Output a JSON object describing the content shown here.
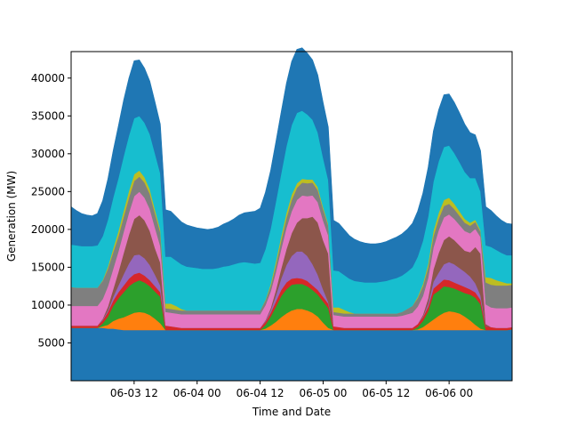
{
  "chart_data": {
    "type": "area",
    "stacked": true,
    "title": "",
    "xlabel": "Time and Date",
    "ylabel": "Generation (MW)",
    "x_start_hour": -36,
    "x_end_hour": 48,
    "xlim_hours": [
      -36,
      48
    ],
    "ylim": [
      0,
      43500
    ],
    "y_ticks": [
      5000,
      10000,
      15000,
      20000,
      25000,
      30000,
      35000,
      40000
    ],
    "x_ticks": [
      {
        "label": "06-03 12",
        "hour": -24
      },
      {
        "label": "06-04 00",
        "hour": -12
      },
      {
        "label": "06-04 12",
        "hour": 0
      },
      {
        "label": "06-05 00",
        "hour": 12
      },
      {
        "label": "06-05 12",
        "hour": 24
      },
      {
        "label": "06-06 00",
        "hour": 36
      }
    ],
    "grid": false,
    "legend": "none",
    "series": [
      {
        "name": "",
        "color": "#1f77b4",
        "values": [
          7000,
          7000,
          7000,
          7000,
          7000,
          7000,
          7000,
          6900,
          6900,
          6800,
          6700,
          6700,
          6700,
          6700,
          6700,
          6700,
          6700,
          6700,
          6700,
          6700,
          6700,
          6700,
          6700,
          6700,
          6700,
          6700,
          6700,
          6700,
          6700,
          6700,
          6700,
          6700,
          6700,
          6700,
          6700,
          6700,
          6700,
          6700,
          6700,
          6700,
          6700,
          6700,
          6700,
          6700,
          6700,
          6700,
          6700,
          6700,
          6700,
          6700,
          6700,
          6700,
          6700,
          6700,
          6700,
          6700,
          6700,
          6700,
          6700,
          6700,
          6700,
          6700,
          6700,
          6700,
          6700,
          6700,
          6700,
          6700,
          6700,
          6700,
          6700,
          6700,
          6700,
          6700,
          6700,
          6700,
          6700,
          6700,
          6700,
          6700,
          6700,
          6700,
          6700,
          6700,
          6800
        ]
      },
      {
        "name": "",
        "color": "#ff7f0e",
        "values": [
          0,
          0,
          0,
          0,
          0,
          0,
          200,
          500,
          1000,
          1400,
          1700,
          2000,
          2300,
          2400,
          2300,
          2000,
          1500,
          900,
          0,
          0,
          0,
          0,
          0,
          0,
          0,
          0,
          0,
          0,
          0,
          0,
          0,
          0,
          0,
          0,
          0,
          0,
          0,
          200,
          600,
          1100,
          1700,
          2200,
          2600,
          2800,
          2800,
          2600,
          2300,
          1800,
          1000,
          300,
          0,
          0,
          0,
          0,
          0,
          0,
          0,
          0,
          0,
          0,
          0,
          0,
          0,
          0,
          0,
          0,
          100,
          400,
          900,
          1400,
          1900,
          2300,
          2500,
          2400,
          2200,
          1800,
          1300,
          700,
          200,
          0,
          0,
          0,
          0,
          0,
          0
        ]
      },
      {
        "name": "",
        "color": "#2ca02c",
        "values": [
          0,
          0,
          0,
          0,
          0,
          0,
          400,
          1100,
          2000,
          2700,
          3300,
          3800,
          4000,
          4200,
          4000,
          3800,
          3600,
          3500,
          0,
          0,
          0,
          0,
          0,
          0,
          0,
          0,
          0,
          0,
          0,
          0,
          0,
          0,
          0,
          0,
          0,
          0,
          0,
          500,
          1200,
          2000,
          2800,
          3200,
          3400,
          3300,
          3300,
          3200,
          3000,
          2900,
          2800,
          2600,
          0,
          0,
          0,
          0,
          0,
          0,
          0,
          0,
          0,
          0,
          0,
          0,
          0,
          0,
          0,
          0,
          300,
          800,
          1600,
          3300,
          3300,
          3500,
          3200,
          3100,
          3000,
          3100,
          3400,
          3600,
          3200,
          0,
          0,
          0,
          0,
          0,
          0
        ]
      },
      {
        "name": "",
        "color": "#d62728",
        "values": [
          300,
          300,
          300,
          300,
          300,
          300,
          400,
          600,
          700,
          800,
          900,
          1000,
          1100,
          1000,
          900,
          800,
          700,
          600,
          600,
          500,
          400,
          300,
          300,
          300,
          300,
          300,
          300,
          300,
          300,
          300,
          300,
          300,
          300,
          300,
          300,
          300,
          300,
          400,
          500,
          700,
          800,
          900,
          800,
          800,
          700,
          700,
          600,
          600,
          600,
          600,
          500,
          400,
          300,
          300,
          300,
          300,
          300,
          300,
          300,
          300,
          300,
          300,
          300,
          300,
          300,
          300,
          400,
          500,
          600,
          800,
          900,
          900,
          900,
          800,
          800,
          800,
          700,
          700,
          600,
          500,
          400,
          300,
          300,
          300,
          300
        ]
      },
      {
        "name": "",
        "color": "#9467bd",
        "values": [
          0,
          0,
          0,
          0,
          0,
          0,
          100,
          200,
          500,
          900,
          1500,
          2000,
          2500,
          2400,
          2300,
          2000,
          1500,
          900,
          0,
          0,
          0,
          0,
          0,
          0,
          0,
          0,
          0,
          0,
          0,
          0,
          0,
          0,
          0,
          0,
          0,
          0,
          0,
          100,
          300,
          800,
          1500,
          2300,
          3000,
          3500,
          3600,
          3300,
          2800,
          2000,
          1000,
          200,
          0,
          0,
          0,
          0,
          0,
          0,
          0,
          0,
          0,
          0,
          0,
          0,
          0,
          0,
          0,
          0,
          0,
          100,
          400,
          900,
          1500,
          2000,
          2400,
          2400,
          2200,
          2000,
          1700,
          1200,
          600,
          0,
          0,
          0,
          0,
          0,
          0
        ]
      },
      {
        "name": "",
        "color": "#8c564b",
        "values": [
          0,
          0,
          0,
          0,
          0,
          0,
          100,
          500,
          1000,
          1800,
          2800,
          3800,
          4800,
          5200,
          5000,
          4500,
          3500,
          3000,
          0,
          0,
          0,
          0,
          0,
          0,
          0,
          0,
          0,
          0,
          0,
          0,
          0,
          0,
          0,
          0,
          0,
          0,
          0,
          100,
          300,
          700,
          1300,
          2100,
          3000,
          3800,
          4400,
          5000,
          6300,
          6900,
          6500,
          6400,
          0,
          0,
          0,
          0,
          0,
          0,
          0,
          0,
          0,
          0,
          0,
          0,
          0,
          0,
          0,
          0,
          0,
          200,
          700,
          1600,
          2600,
          3200,
          3400,
          3200,
          3000,
          2800,
          3200,
          4800,
          5500,
          300,
          0,
          0,
          0,
          0,
          0
        ]
      },
      {
        "name": "",
        "color": "#e377c2",
        "values": [
          2600,
          2600,
          2600,
          2600,
          2600,
          2600,
          2600,
          2700,
          2700,
          2700,
          2800,
          2900,
          3000,
          3100,
          3000,
          2900,
          2700,
          2200,
          1800,
          1800,
          1800,
          1800,
          1800,
          1800,
          1800,
          1800,
          1800,
          1800,
          1800,
          1800,
          1800,
          1800,
          1800,
          1800,
          1800,
          1800,
          1800,
          2000,
          2200,
          2400,
          2600,
          2800,
          2900,
          3000,
          3000,
          2900,
          2800,
          2700,
          2600,
          2400,
          1500,
          1500,
          1500,
          1500,
          1500,
          1500,
          1500,
          1500,
          1500,
          1500,
          1500,
          1500,
          1500,
          1600,
          1800,
          2000,
          2300,
          2500,
          2700,
          2900,
          3000,
          3000,
          2900,
          2800,
          2700,
          2600,
          2500,
          2400,
          2200,
          2600,
          2600,
          2600,
          2600,
          2600,
          2600
        ]
      },
      {
        "name": "",
        "color": "#7f7f7f",
        "values": [
          2500,
          2400,
          2400,
          2400,
          2400,
          2400,
          2400,
          2300,
          2200,
          2000,
          2000,
          2000,
          2000,
          2000,
          2000,
          2000,
          1900,
          1800,
          500,
          500,
          500,
          500,
          500,
          500,
          500,
          500,
          500,
          500,
          500,
          500,
          500,
          500,
          500,
          500,
          500,
          500,
          500,
          600,
          700,
          900,
          1100,
          1300,
          1500,
          1600,
          1700,
          1700,
          1700,
          1600,
          1500,
          1300,
          400,
          400,
          400,
          400,
          400,
          400,
          400,
          400,
          400,
          400,
          400,
          400,
          400,
          500,
          700,
          900,
          1100,
          1300,
          1400,
          1500,
          1500,
          1500,
          1400,
          1300,
          1200,
          1100,
          1000,
          900,
          700,
          2900,
          3000,
          3000,
          3000,
          3000,
          3000
        ]
      },
      {
        "name": "",
        "color": "#bcbd22",
        "values": [
          0,
          0,
          0,
          0,
          0,
          0,
          100,
          300,
          500,
          700,
          800,
          900,
          900,
          800,
          700,
          600,
          500,
          400,
          600,
          700,
          500,
          200,
          0,
          0,
          0,
          0,
          0,
          0,
          0,
          0,
          0,
          0,
          0,
          0,
          0,
          0,
          0,
          100,
          300,
          500,
          600,
          700,
          700,
          600,
          500,
          500,
          400,
          400,
          300,
          200,
          600,
          700,
          500,
          200,
          0,
          0,
          0,
          0,
          0,
          0,
          0,
          0,
          0,
          0,
          0,
          0,
          200,
          300,
          500,
          700,
          800,
          800,
          800,
          700,
          600,
          500,
          400,
          300,
          200,
          700,
          900,
          700,
          500,
          300,
          200
        ]
      },
      {
        "name": "",
        "color": "#17becf",
        "values": [
          5600,
          5600,
          5500,
          5500,
          5500,
          5600,
          5800,
          6200,
          6700,
          7000,
          7200,
          7300,
          7400,
          7200,
          7200,
          7300,
          7400,
          7400,
          6200,
          6200,
          6000,
          5900,
          5800,
          5700,
          5600,
          5500,
          5500,
          5500,
          5600,
          5800,
          5900,
          6100,
          6300,
          6400,
          6300,
          6200,
          6300,
          6700,
          7300,
          7900,
          8300,
          8800,
          9200,
          9300,
          9000,
          8600,
          7900,
          7200,
          6500,
          5800,
          4900,
          4800,
          4600,
          4400,
          4300,
          4200,
          4100,
          4100,
          4100,
          4200,
          4300,
          4500,
          4700,
          4800,
          4900,
          5100,
          5300,
          5700,
          6200,
          6500,
          6800,
          7000,
          6900,
          6700,
          6500,
          6200,
          5900,
          5500,
          5100,
          4200,
          4100,
          4000,
          3800,
          3700,
          3700
        ]
      },
      {
        "name": "",
        "color": "#1f77b4",
        "values": [
          5000,
          4600,
          4300,
          4100,
          4000,
          4200,
          4700,
          5400,
          6200,
          6900,
          7400,
          7600,
          7600,
          7400,
          7200,
          7000,
          6800,
          6500,
          6200,
          6000,
          5800,
          5600,
          5500,
          5400,
          5300,
          5300,
          5200,
          5300,
          5400,
          5600,
          5800,
          6000,
          6300,
          6500,
          6700,
          6900,
          7200,
          7500,
          7700,
          7900,
          8100,
          8300,
          8400,
          8400,
          8300,
          8100,
          7900,
          7600,
          7300,
          7000,
          6600,
          6300,
          6000,
          5700,
          5500,
          5300,
          5200,
          5100,
          5100,
          5100,
          5200,
          5300,
          5400,
          5500,
          5600,
          5800,
          6000,
          6300,
          6500,
          6700,
          6800,
          6900,
          6800,
          6700,
          6500,
          6300,
          6000,
          5700,
          5400,
          5100,
          4800,
          4500,
          4300,
          4200,
          4100
        ]
      }
    ]
  }
}
